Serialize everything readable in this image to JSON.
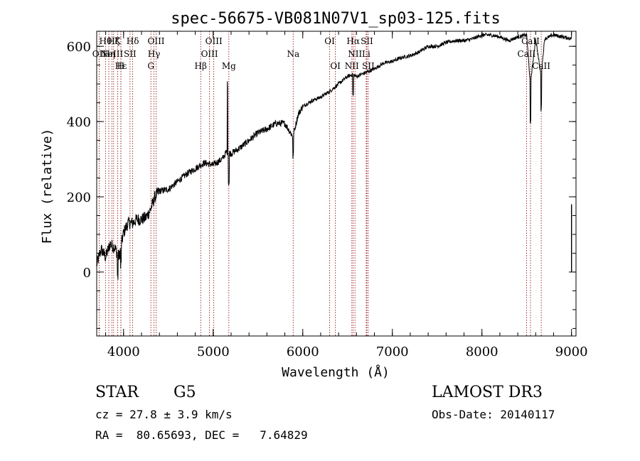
{
  "chart_data": {
    "type": "line",
    "title": "spec-56675-VB081N07V1_sp03-125.fits",
    "xlabel": "Wavelength (Å)",
    "ylabel": "Flux (relative)",
    "xlim": [
      3700,
      9050
    ],
    "ylim": [
      -170,
      640
    ],
    "xticks": [
      4000,
      5000,
      6000,
      7000,
      8000,
      9000
    ],
    "yticks": [
      0,
      200,
      400,
      600
    ],
    "x": [
      3700,
      3750,
      3800,
      3850,
      3900,
      3950,
      4000,
      4050,
      4100,
      4150,
      4200,
      4250,
      4300,
      4350,
      4400,
      4500,
      4600,
      4700,
      4800,
      4900,
      5000,
      5100,
      5150,
      5200,
      5300,
      5400,
      5500,
      5600,
      5700,
      5800,
      5890,
      5950,
      6000,
      6100,
      6200,
      6300,
      6400,
      6500,
      6560,
      6600,
      6700,
      6800,
      6900,
      7000,
      7100,
      7200,
      7300,
      7400,
      7500,
      7600,
      7700,
      7800,
      7900,
      8000,
      8100,
      8200,
      8300,
      8400,
      8500,
      8540,
      8600,
      8660,
      8700,
      8800,
      8900,
      9000
    ],
    "values": [
      20,
      60,
      40,
      75,
      65,
      40,
      105,
      130,
      130,
      140,
      140,
      145,
      165,
      200,
      215,
      220,
      240,
      260,
      275,
      290,
      285,
      300,
      320,
      315,
      330,
      350,
      370,
      380,
      395,
      395,
      360,
      420,
      440,
      455,
      465,
      480,
      500,
      520,
      525,
      520,
      530,
      540,
      555,
      560,
      570,
      575,
      585,
      600,
      600,
      610,
      615,
      615,
      620,
      630,
      630,
      625,
      615,
      625,
      630,
      500,
      620,
      520,
      620,
      630,
      625,
      620
    ],
    "line_colors": {
      "spectrum": "#000000",
      "lines": "#8b0000",
      "axes": "#000000"
    },
    "lines": [
      {
        "wave": 3727,
        "label": "OII",
        "row": 2
      },
      {
        "wave": 3798,
        "label": "Hθ",
        "row": 1
      },
      {
        "wave": 3835,
        "label": "Hη",
        "row": 2
      },
      {
        "wave": 3869,
        "label": "NeIII",
        "row": 2
      },
      {
        "wave": 3889,
        "label": "Hζ",
        "row": 1
      },
      {
        "wave": 3934,
        "label": "K",
        "row": 1
      },
      {
        "wave": 3970,
        "label": "H",
        "row": 3
      },
      {
        "wave": 3970,
        "label": "Hε",
        "row": 3
      },
      {
        "wave": 4072,
        "label": "SII",
        "row": 2
      },
      {
        "wave": 4102,
        "label": "Hδ",
        "row": 1
      },
      {
        "wave": 4305,
        "label": "G",
        "row": 3
      },
      {
        "wave": 4340,
        "label": "Hγ",
        "row": 2
      },
      {
        "wave": 4363,
        "label": "OIII",
        "row": 1
      },
      {
        "wave": 4861,
        "label": "Hβ",
        "row": 3
      },
      {
        "wave": 4959,
        "label": "OIII",
        "row": 2
      },
      {
        "wave": 5007,
        "label": "OIII",
        "row": 1
      },
      {
        "wave": 5175,
        "label": "Mg",
        "row": 3
      },
      {
        "wave": 5893,
        "label": "Na",
        "row": 2
      },
      {
        "wave": 6300,
        "label": "OI",
        "row": 1
      },
      {
        "wave": 6364,
        "label": "OI",
        "row": 3
      },
      {
        "wave": 6548,
        "label": "NII",
        "row": 3
      },
      {
        "wave": 6563,
        "label": "Hα",
        "row": 1
      },
      {
        "wave": 6583,
        "label": "NII",
        "row": 2
      },
      {
        "wave": 6708,
        "label": "Li",
        "row": 2
      },
      {
        "wave": 6716,
        "label": "SII",
        "row": 1
      },
      {
        "wave": 6731,
        "label": "SII",
        "row": 3
      },
      {
        "wave": 8498,
        "label": "CaII",
        "row": 2
      },
      {
        "wave": 8542,
        "label": "CaII",
        "row": 1
      },
      {
        "wave": 8662,
        "label": "CaII",
        "row": 3
      }
    ]
  },
  "info": {
    "class_label": "STAR",
    "subclass": "G5",
    "survey": "LAMOST DR3",
    "cz_text": "cz = 27.8 ± 3.9 km/s",
    "obs_date": "Obs-Date: 20140117",
    "coords": "RA =  80.65693, DEC =   7.64829"
  }
}
